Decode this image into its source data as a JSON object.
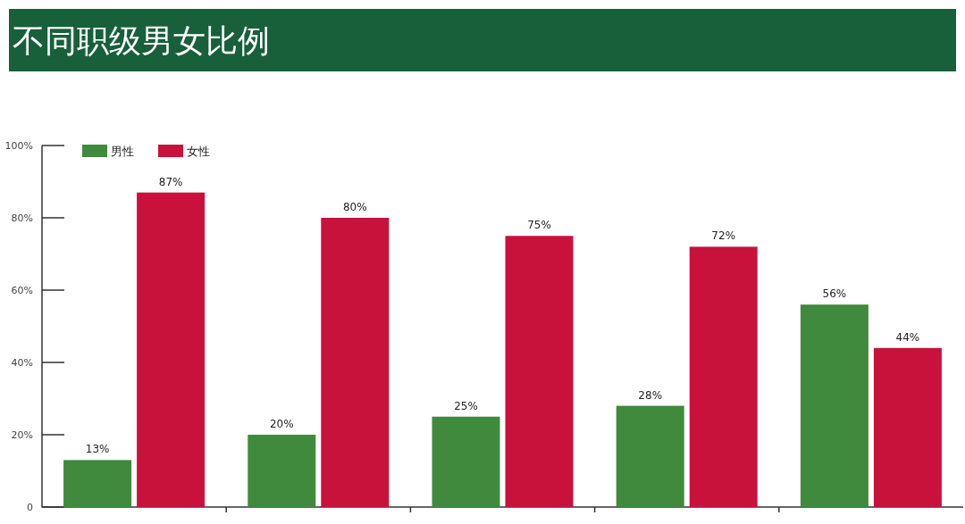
{
  "chart_data": {
    "type": "bar",
    "title": "不同职级男女比例",
    "categories": [
      null,
      null,
      null,
      null,
      null
    ],
    "series": [
      {
        "name": "男性",
        "color": "#3f8a3c",
        "values": [
          13,
          20,
          25,
          28,
          56
        ],
        "value_labels": [
          "13%",
          "20%",
          "25%",
          "28%",
          "56%"
        ]
      },
      {
        "name": "女性",
        "color": "#c8123c",
        "values": [
          87,
          80,
          75,
          72,
          44
        ],
        "value_labels": [
          "87%",
          "80%",
          "75%",
          "72%",
          "44%"
        ]
      }
    ],
    "ylim": [
      0,
      100
    ],
    "yticks": [
      {
        "value": 0,
        "label": "0"
      },
      {
        "value": 20,
        "label": "20%"
      },
      {
        "value": 40,
        "label": "40%"
      },
      {
        "value": 60,
        "label": "60%"
      },
      {
        "value": 80,
        "label": "80%"
      },
      {
        "value": 100,
        "label": "100%"
      }
    ],
    "grid": false,
    "legend": "top left"
  }
}
